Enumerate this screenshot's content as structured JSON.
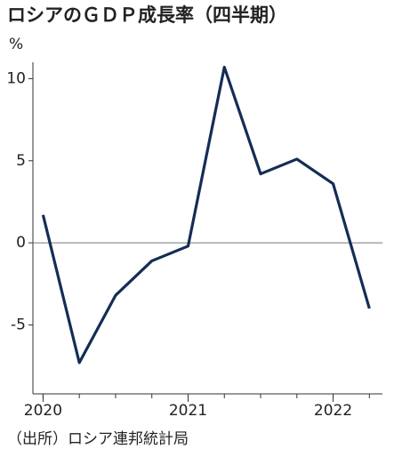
{
  "chart_data": {
    "type": "line",
    "title": "ロシアのＧＤＰ成長率（四半期）",
    "y_unit": "%",
    "source": "（出所）ロシア連邦統計局",
    "x": [
      2020,
      2020.25,
      2020.5,
      2020.75,
      2021,
      2021.25,
      2021.5,
      2021.75,
      2022,
      2022.25
    ],
    "series": [
      {
        "color": "#142d55",
        "values": [
          1.7,
          -7.3,
          -3.2,
          -1.1,
          -0.2,
          10.7,
          4.2,
          5.1,
          3.6,
          -4.0
        ]
      }
    ],
    "xlim": [
      2019.93,
      2022.34
    ],
    "xticks": [
      2020,
      2021,
      2022
    ],
    "ylim": [
      -9.2,
      11
    ],
    "yticks": [
      10,
      5,
      0,
      -5
    ],
    "zero_line": true
  }
}
